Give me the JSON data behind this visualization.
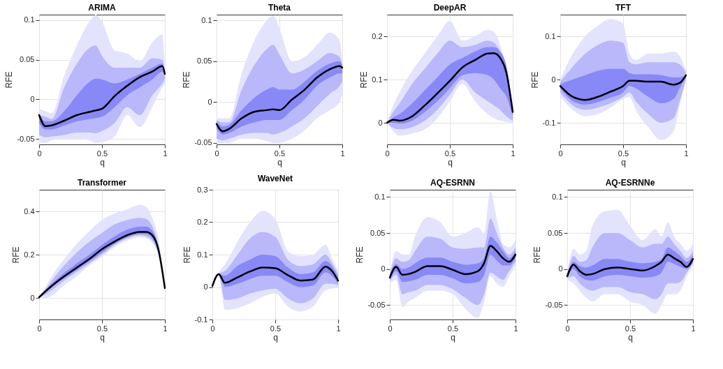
{
  "chart_data": [
    {
      "type": "line",
      "title": "ARIMA",
      "xlabel": "q",
      "ylabel": "RFE",
      "xlim": [
        0,
        1
      ],
      "xticks": [
        0,
        0.5,
        1
      ],
      "ylim": [
        -0.057,
        0.107
      ],
      "yticks": [
        -0.05,
        0,
        0.05,
        0.1
      ],
      "grid": true,
      "x": [
        0,
        0.05,
        0.1,
        0.2,
        0.3,
        0.4,
        0.45,
        0.5,
        0.6,
        0.7,
        0.8,
        0.9,
        0.98,
        1
      ],
      "series": [
        {
          "type": "area",
          "color": "#e3e3fd",
          "values": [
            null,
            null,
            null,
            null,
            null,
            null,
            null,
            null,
            null,
            null,
            null,
            null,
            null,
            null
          ],
          "lower": [
            -0.055,
            -0.055,
            -0.052,
            -0.05,
            -0.05,
            -0.052,
            -0.055,
            -0.054,
            -0.047,
            -0.02,
            -0.035,
            -0.01,
            0.015,
            0.02
          ],
          "upper": [
            -0.012,
            -0.015,
            -0.018,
            0.03,
            0.068,
            0.098,
            0.107,
            0.098,
            0.062,
            0.058,
            0.048,
            0.072,
            0.082,
            0.04
          ]
        },
        {
          "type": "area",
          "color": "#b8b8fb",
          "values": [
            null,
            null,
            null,
            null,
            null,
            null,
            null,
            null,
            null,
            null,
            null,
            null,
            null,
            null
          ],
          "lower": [
            -0.045,
            -0.048,
            -0.047,
            -0.045,
            -0.042,
            -0.042,
            -0.043,
            -0.04,
            -0.03,
            -0.01,
            -0.02,
            0.005,
            0.02,
            0.025
          ],
          "upper": [
            -0.02,
            -0.022,
            -0.025,
            0.015,
            0.045,
            0.065,
            0.068,
            0.055,
            0.04,
            0.04,
            0.04,
            0.052,
            0.05,
            0.035
          ]
        },
        {
          "type": "area",
          "color": "#8888f7",
          "values": [
            null,
            null,
            null,
            null,
            null,
            null,
            null,
            null,
            null,
            null,
            null,
            null,
            null,
            null
          ],
          "lower": [
            -0.03,
            -0.038,
            -0.038,
            -0.033,
            -0.028,
            -0.025,
            -0.024,
            -0.022,
            -0.01,
            0.005,
            0.015,
            0.025,
            0.035,
            0.03
          ],
          "upper": [
            -0.018,
            -0.028,
            -0.028,
            -0.015,
            0.005,
            0.022,
            0.026,
            0.025,
            0.02,
            0.025,
            0.032,
            0.04,
            0.045,
            0.035
          ]
        },
        {
          "type": "line",
          "color": "#000000",
          "values": [
            -0.02,
            -0.034,
            -0.033,
            -0.027,
            -0.02,
            -0.016,
            -0.014,
            -0.012,
            0.004,
            0.017,
            0.028,
            0.035,
            0.042,
            0.032
          ]
        }
      ]
    },
    {
      "type": "line",
      "title": "Theta",
      "xlabel": "q",
      "ylabel": "RFE",
      "xlim": [
        0,
        1
      ],
      "xticks": [
        0,
        0.5,
        1
      ],
      "ylim": [
        -0.052,
        0.107
      ],
      "yticks": [
        -0.05,
        0,
        0.05,
        0.1
      ],
      "grid": true,
      "x": [
        0,
        0.05,
        0.1,
        0.2,
        0.3,
        0.4,
        0.45,
        0.5,
        0.6,
        0.7,
        0.8,
        0.9,
        0.98,
        1
      ],
      "series": [
        {
          "type": "area",
          "color": "#e3e3fd",
          "values": [
            null,
            null,
            null,
            null,
            null,
            null,
            null,
            null,
            null,
            null,
            null,
            null,
            null,
            null
          ],
          "lower": [
            -0.05,
            -0.05,
            -0.05,
            -0.045,
            -0.045,
            -0.048,
            -0.05,
            -0.05,
            -0.045,
            -0.035,
            -0.02,
            -0.01,
            0.0,
            0.01
          ],
          "upper": [
            -0.02,
            -0.02,
            -0.02,
            0.035,
            0.075,
            0.1,
            0.106,
            0.09,
            0.05,
            0.055,
            0.07,
            0.085,
            0.075,
            0.05
          ]
        },
        {
          "type": "area",
          "color": "#b8b8fb",
          "values": [
            null,
            null,
            null,
            null,
            null,
            null,
            null,
            null,
            null,
            null,
            null,
            null,
            null,
            null
          ],
          "lower": [
            -0.045,
            -0.047,
            -0.045,
            -0.04,
            -0.038,
            -0.038,
            -0.04,
            -0.038,
            -0.03,
            -0.02,
            -0.005,
            0.01,
            0.02,
            0.025
          ],
          "upper": [
            -0.022,
            -0.025,
            -0.025,
            0.015,
            0.045,
            0.065,
            0.07,
            0.058,
            0.035,
            0.04,
            0.05,
            0.06,
            0.055,
            0.045
          ]
        },
        {
          "type": "area",
          "color": "#8888f7",
          "values": [
            null,
            null,
            null,
            null,
            null,
            null,
            null,
            null,
            null,
            null,
            null,
            null,
            null,
            null
          ],
          "lower": [
            -0.032,
            -0.04,
            -0.038,
            -0.03,
            -0.025,
            -0.022,
            -0.022,
            -0.022,
            -0.01,
            0.003,
            0.02,
            0.03,
            0.035,
            0.035
          ],
          "upper": [
            -0.024,
            -0.03,
            -0.028,
            -0.01,
            0.005,
            0.015,
            0.018,
            0.015,
            0.015,
            0.025,
            0.038,
            0.047,
            0.05,
            0.045
          ]
        },
        {
          "type": "line",
          "color": "#000000",
          "values": [
            -0.027,
            -0.036,
            -0.033,
            -0.02,
            -0.012,
            -0.01,
            -0.009,
            -0.01,
            0.003,
            0.015,
            0.03,
            0.04,
            0.044,
            0.042
          ]
        }
      ]
    },
    {
      "type": "line",
      "title": "DeepAR",
      "xlabel": "q",
      "ylabel": "RFE",
      "xlim": [
        0,
        1
      ],
      "xticks": [
        0,
        0.5,
        1
      ],
      "ylim": [
        -0.05,
        0.25
      ],
      "yticks": [
        0,
        0.1,
        0.2
      ],
      "grid": true,
      "x": [
        0,
        0.05,
        0.1,
        0.2,
        0.3,
        0.4,
        0.5,
        0.6,
        0.7,
        0.8,
        0.85,
        0.9,
        0.95,
        1
      ],
      "series": [
        {
          "type": "area",
          "color": "#e3e3fd",
          "values": [
            null,
            null,
            null,
            null,
            null,
            null,
            null,
            null,
            null,
            null,
            null,
            null,
            null,
            null
          ],
          "lower": [
            0,
            -0.02,
            -0.03,
            -0.025,
            -0.015,
            0.01,
            0.05,
            0.09,
            0.05,
            0.02,
            0.01,
            0.005,
            0.002,
            0.0
          ],
          "upper": [
            0,
            0.04,
            0.07,
            0.12,
            0.16,
            0.2,
            0.235,
            0.19,
            0.2,
            0.215,
            0.21,
            0.18,
            0.12,
            0.03
          ]
        },
        {
          "type": "area",
          "color": "#b8b8fb",
          "values": [
            null,
            null,
            null,
            null,
            null,
            null,
            null,
            null,
            null,
            null,
            null,
            null,
            null,
            null
          ],
          "lower": [
            0,
            -0.012,
            -0.015,
            -0.01,
            0.005,
            0.03,
            0.065,
            0.1,
            0.07,
            0.05,
            0.04,
            0.03,
            0.015,
            0.005
          ],
          "upper": [
            0,
            0.025,
            0.045,
            0.09,
            0.125,
            0.16,
            0.19,
            0.175,
            0.18,
            0.19,
            0.185,
            0.165,
            0.13,
            0.03
          ]
        },
        {
          "type": "area",
          "color": "#8888f7",
          "values": [
            null,
            null,
            null,
            null,
            null,
            null,
            null,
            null,
            null,
            null,
            null,
            null,
            null,
            null
          ],
          "lower": [
            0,
            0,
            -0.002,
            0.005,
            0.025,
            0.05,
            0.08,
            0.11,
            0.115,
            0.11,
            0.1,
            0.08,
            0.06,
            0.015
          ],
          "upper": [
            0,
            0.012,
            0.02,
            0.045,
            0.075,
            0.105,
            0.135,
            0.15,
            0.165,
            0.175,
            0.175,
            0.165,
            0.13,
            0.03
          ]
        },
        {
          "type": "line",
          "color": "#000000",
          "values": [
            0,
            0.007,
            0.005,
            0.015,
            0.04,
            0.068,
            0.097,
            0.128,
            0.145,
            0.16,
            0.161,
            0.15,
            0.115,
            0.025
          ]
        }
      ]
    },
    {
      "type": "line",
      "title": "TFT",
      "xlabel": "q",
      "ylabel": "RFE",
      "xlim": [
        0,
        1
      ],
      "xticks": [
        0,
        0.5,
        1
      ],
      "ylim": [
        -0.15,
        0.15
      ],
      "yticks": [
        -0.1,
        0,
        0.1
      ],
      "grid": true,
      "x": [
        0,
        0.1,
        0.2,
        0.3,
        0.4,
        0.5,
        0.55,
        0.6,
        0.7,
        0.8,
        0.9,
        0.95,
        1
      ],
      "series": [
        {
          "type": "area",
          "color": "#e3e3fd",
          "values": [
            null,
            null,
            null,
            null,
            null,
            null,
            null,
            null,
            null,
            null,
            null,
            null,
            null
          ],
          "lower": [
            -0.04,
            -0.07,
            -0.085,
            -0.08,
            -0.065,
            -0.045,
            -0.04,
            -0.07,
            -0.11,
            -0.14,
            -0.12,
            -0.06,
            0.0
          ],
          "upper": [
            0,
            0.06,
            0.1,
            0.125,
            0.14,
            0.13,
            0.06,
            0.045,
            0.06,
            0.06,
            0.065,
            0.055,
            0.02
          ]
        },
        {
          "type": "area",
          "color": "#b8b8fb",
          "values": [
            null,
            null,
            null,
            null,
            null,
            null,
            null,
            null,
            null,
            null,
            null,
            null,
            null
          ],
          "lower": [
            -0.03,
            -0.06,
            -0.07,
            -0.065,
            -0.055,
            -0.04,
            -0.03,
            -0.05,
            -0.08,
            -0.1,
            -0.09,
            -0.05,
            0.0
          ],
          "upper": [
            -0.005,
            0.03,
            0.06,
            0.08,
            0.09,
            0.085,
            0.04,
            0.035,
            0.04,
            0.04,
            0.04,
            0.035,
            0.015
          ]
        },
        {
          "type": "area",
          "color": "#8888f7",
          "values": [
            null,
            null,
            null,
            null,
            null,
            null,
            null,
            null,
            null,
            null,
            null,
            null,
            null
          ],
          "lower": [
            -0.02,
            -0.05,
            -0.058,
            -0.052,
            -0.042,
            -0.03,
            -0.015,
            -0.02,
            -0.04,
            -0.055,
            -0.045,
            -0.02,
            0.005
          ],
          "upper": [
            -0.01,
            0.0,
            0.01,
            0.02,
            0.025,
            0.025,
            0.015,
            0.012,
            0.012,
            0.01,
            0.005,
            0.005,
            0.01
          ]
        },
        {
          "type": "line",
          "color": "#000000",
          "values": [
            -0.015,
            -0.04,
            -0.047,
            -0.04,
            -0.028,
            -0.015,
            -0.003,
            -0.003,
            -0.005,
            -0.005,
            -0.012,
            -0.008,
            0.01
          ]
        }
      ]
    },
    {
      "type": "line",
      "title": "Transformer",
      "xlabel": "q",
      "ylabel": "RFE",
      "xlim": [
        0,
        1
      ],
      "xticks": [
        0,
        0.5,
        1
      ],
      "ylim": [
        -0.1,
        0.5
      ],
      "yticks": [
        0,
        0.2,
        0.4
      ],
      "grid": true,
      "x": [
        0,
        0.05,
        0.1,
        0.2,
        0.3,
        0.4,
        0.5,
        0.6,
        0.7,
        0.8,
        0.85,
        0.9,
        0.95,
        1
      ],
      "series": [
        {
          "type": "area",
          "color": "#e3e3fd",
          "values": [
            null,
            null,
            null,
            null,
            null,
            null,
            null,
            null,
            null,
            null,
            null,
            null,
            null,
            null
          ],
          "lower": [
            0,
            0,
            0.01,
            0.06,
            0.1,
            0.15,
            0.19,
            0.235,
            0.265,
            0.28,
            0.275,
            0.255,
            0.19,
            0.03
          ],
          "upper": [
            0.005,
            0.05,
            0.1,
            0.18,
            0.25,
            0.31,
            0.36,
            0.39,
            0.41,
            0.43,
            0.42,
            0.37,
            0.27,
            0.06
          ]
        },
        {
          "type": "area",
          "color": "#b8b8fb",
          "values": [
            null,
            null,
            null,
            null,
            null,
            null,
            null,
            null,
            null,
            null,
            null,
            null,
            null,
            null
          ],
          "lower": [
            0.001,
            0.015,
            0.035,
            0.08,
            0.12,
            0.16,
            0.2,
            0.245,
            0.275,
            0.29,
            0.285,
            0.265,
            0.2,
            0.04
          ],
          "upper": [
            0.004,
            0.04,
            0.08,
            0.15,
            0.21,
            0.26,
            0.3,
            0.34,
            0.36,
            0.37,
            0.365,
            0.33,
            0.24,
            0.05
          ]
        },
        {
          "type": "area",
          "color": "#8888f7",
          "values": [
            null,
            null,
            null,
            null,
            null,
            null,
            null,
            null,
            null,
            null,
            null,
            null,
            null,
            null
          ],
          "lower": [
            0.002,
            0.025,
            0.05,
            0.09,
            0.13,
            0.17,
            0.21,
            0.25,
            0.28,
            0.295,
            0.295,
            0.275,
            0.21,
            0.04
          ],
          "upper": [
            0.004,
            0.035,
            0.065,
            0.115,
            0.16,
            0.2,
            0.245,
            0.285,
            0.315,
            0.33,
            0.33,
            0.31,
            0.23,
            0.05
          ]
        },
        {
          "type": "line",
          "color": "#000000",
          "values": [
            0.003,
            0.03,
            0.055,
            0.1,
            0.14,
            0.18,
            0.225,
            0.26,
            0.29,
            0.305,
            0.305,
            0.29,
            0.22,
            0.045
          ]
        }
      ]
    },
    {
      "type": "line",
      "title": "WaveNet",
      "xlabel": "q",
      "ylabel": "RFE",
      "xlim": [
        0,
        1
      ],
      "xticks": [
        0,
        0.5,
        1
      ],
      "ylim": [
        -0.1,
        0.3
      ],
      "yticks": [
        -0.1,
        0,
        0.1,
        0.2,
        0.3
      ],
      "grid": true,
      "x": [
        0,
        0.05,
        0.1,
        0.2,
        0.3,
        0.4,
        0.5,
        0.6,
        0.7,
        0.8,
        0.9,
        0.95,
        1
      ],
      "series": [
        {
          "type": "area",
          "color": "#e3e3fd",
          "values": [
            null,
            null,
            null,
            null,
            null,
            null,
            null,
            null,
            null,
            null,
            null,
            null,
            null
          ],
          "lower": [
            0,
            0.035,
            -0.07,
            -0.065,
            -0.05,
            -0.03,
            -0.02,
            -0.06,
            -0.075,
            -0.06,
            -0.01,
            -0.005,
            0.0
          ],
          "upper": [
            0.005,
            0.045,
            0.07,
            0.14,
            0.2,
            0.235,
            0.21,
            0.11,
            0.095,
            0.1,
            0.13,
            0.09,
            0.05
          ]
        },
        {
          "type": "area",
          "color": "#b8b8fb",
          "values": [
            null,
            null,
            null,
            null,
            null,
            null,
            null,
            null,
            null,
            null,
            null,
            null,
            null
          ],
          "lower": [
            0.001,
            0.037,
            -0.04,
            -0.035,
            -0.02,
            -0.01,
            -0.005,
            -0.035,
            -0.05,
            -0.035,
            0.01,
            0.01,
            0.005
          ],
          "upper": [
            0.004,
            0.042,
            0.05,
            0.1,
            0.15,
            0.17,
            0.155,
            0.085,
            0.065,
            0.07,
            0.1,
            0.075,
            0.04
          ]
        },
        {
          "type": "area",
          "color": "#8888f7",
          "values": [
            null,
            null,
            null,
            null,
            null,
            null,
            null,
            null,
            null,
            null,
            null,
            null,
            null
          ],
          "lower": [
            0.002,
            0.039,
            0.0,
            0.01,
            0.025,
            0.035,
            0.035,
            0.015,
            0.0,
            0.005,
            0.045,
            0.035,
            0.01
          ],
          "upper": [
            0.004,
            0.041,
            0.035,
            0.065,
            0.085,
            0.1,
            0.095,
            0.06,
            0.04,
            0.045,
            0.08,
            0.065,
            0.03
          ]
        },
        {
          "type": "line",
          "color": "#000000",
          "values": [
            0.003,
            0.04,
            0.013,
            0.03,
            0.048,
            0.06,
            0.058,
            0.037,
            0.02,
            0.023,
            0.063,
            0.05,
            0.02
          ]
        }
      ]
    },
    {
      "type": "line",
      "title": "AQ-ESRNN",
      "xlabel": "q",
      "ylabel": "RFE",
      "xlim": [
        0,
        1
      ],
      "xticks": [
        0,
        0.5,
        1
      ],
      "ylim": [
        -0.07,
        0.11
      ],
      "yticks": [
        -0.05,
        0,
        0.05,
        0.1
      ],
      "grid": true,
      "x": [
        0,
        0.05,
        0.1,
        0.15,
        0.2,
        0.3,
        0.4,
        0.5,
        0.6,
        0.7,
        0.75,
        0.8,
        0.85,
        0.9,
        0.95,
        1
      ],
      "series": [
        {
          "type": "area",
          "color": "#e3e3fd",
          "values": [
            null,
            null,
            null,
            null,
            null,
            null,
            null,
            null,
            null,
            null,
            null,
            null,
            null,
            null,
            null,
            null
          ],
          "lower": [
            -0.02,
            -0.015,
            -0.053,
            -0.045,
            -0.04,
            -0.03,
            -0.03,
            -0.035,
            -0.055,
            -0.068,
            -0.045,
            -0.01,
            -0.02,
            -0.025,
            -0.01,
            0.005
          ],
          "upper": [
            -0.005,
            0.025,
            0.02,
            0.02,
            0.045,
            0.072,
            0.065,
            0.045,
            0.05,
            0.058,
            0.05,
            0.108,
            0.07,
            0.035,
            0.03,
            0.04
          ]
        },
        {
          "type": "area",
          "color": "#b8b8fb",
          "values": [
            null,
            null,
            null,
            null,
            null,
            null,
            null,
            null,
            null,
            null,
            null,
            null,
            null,
            null,
            null,
            null
          ],
          "lower": [
            -0.017,
            -0.008,
            -0.035,
            -0.032,
            -0.03,
            -0.022,
            -0.022,
            -0.028,
            -0.04,
            -0.05,
            -0.035,
            -0.005,
            -0.01,
            -0.015,
            -0.003,
            0.01
          ],
          "upper": [
            -0.007,
            0.015,
            0.01,
            0.012,
            0.025,
            0.045,
            0.042,
            0.03,
            0.028,
            0.03,
            0.03,
            0.07,
            0.05,
            0.03,
            0.02,
            0.03
          ]
        },
        {
          "type": "area",
          "color": "#8888f7",
          "values": [
            null,
            null,
            null,
            null,
            null,
            null,
            null,
            null,
            null,
            null,
            null,
            null,
            null,
            null,
            null,
            null
          ],
          "lower": [
            -0.015,
            -0.003,
            -0.018,
            -0.017,
            -0.015,
            -0.008,
            -0.008,
            -0.013,
            -0.02,
            -0.018,
            -0.008,
            0.02,
            0.012,
            0.005,
            0.005,
            0.015
          ],
          "upper": [
            -0.009,
            0.007,
            0.0,
            0.002,
            0.008,
            0.016,
            0.016,
            0.01,
            0.006,
            0.008,
            0.015,
            0.045,
            0.037,
            0.025,
            0.015,
            0.025
          ]
        },
        {
          "type": "line",
          "color": "#000000",
          "values": [
            -0.012,
            0.003,
            -0.008,
            -0.007,
            -0.004,
            0.004,
            0.004,
            -0.001,
            -0.007,
            -0.003,
            0.008,
            0.032,
            0.025,
            0.015,
            0.01,
            0.02
          ]
        }
      ]
    },
    {
      "type": "line",
      "title": "AQ-ESRNNe",
      "xlabel": "q",
      "ylabel": "RFE",
      "xlim": [
        0,
        1
      ],
      "xticks": [
        0,
        0.5,
        1
      ],
      "ylim": [
        -0.07,
        0.11
      ],
      "yticks": [
        -0.05,
        0,
        0.05,
        0.1
      ],
      "grid": true,
      "x": [
        0,
        0.05,
        0.1,
        0.15,
        0.2,
        0.3,
        0.4,
        0.5,
        0.6,
        0.7,
        0.75,
        0.8,
        0.85,
        0.9,
        0.95,
        1
      ],
      "series": [
        {
          "type": "area",
          "color": "#e3e3fd",
          "values": [
            null,
            null,
            null,
            null,
            null,
            null,
            null,
            null,
            null,
            null,
            null,
            null,
            null,
            null,
            null,
            null
          ],
          "lower": [
            -0.015,
            -0.02,
            -0.03,
            -0.04,
            -0.045,
            -0.035,
            -0.035,
            -0.045,
            -0.05,
            -0.062,
            -0.05,
            -0.035,
            -0.035,
            -0.03,
            -0.01,
            0.005
          ],
          "upper": [
            -0.005,
            0.028,
            0.02,
            0.025,
            0.06,
            0.08,
            0.082,
            0.06,
            0.04,
            0.055,
            0.045,
            0.065,
            0.045,
            0.035,
            0.025,
            0.035
          ]
        },
        {
          "type": "area",
          "color": "#b8b8fb",
          "values": [
            null,
            null,
            null,
            null,
            null,
            null,
            null,
            null,
            null,
            null,
            null,
            null,
            null,
            null,
            null,
            null
          ],
          "lower": [
            -0.013,
            -0.01,
            -0.02,
            -0.027,
            -0.03,
            -0.025,
            -0.025,
            -0.032,
            -0.035,
            -0.042,
            -0.035,
            -0.02,
            -0.02,
            -0.018,
            -0.005,
            0.008
          ],
          "upper": [
            -0.007,
            0.018,
            0.01,
            0.012,
            0.03,
            0.05,
            0.05,
            0.04,
            0.03,
            0.035,
            0.035,
            0.045,
            0.035,
            0.025,
            0.015,
            0.025
          ]
        },
        {
          "type": "area",
          "color": "#8888f7",
          "values": [
            null,
            null,
            null,
            null,
            null,
            null,
            null,
            null,
            null,
            null,
            null,
            null,
            null,
            null,
            null,
            null
          ],
          "lower": [
            -0.012,
            0.0,
            -0.01,
            -0.015,
            -0.016,
            -0.01,
            -0.008,
            -0.01,
            -0.012,
            -0.01,
            -0.005,
            0.01,
            0.007,
            0.003,
            0.0,
            0.01
          ],
          "upper": [
            -0.008,
            0.01,
            0.004,
            0.002,
            0.005,
            0.014,
            0.014,
            0.01,
            0.008,
            0.01,
            0.014,
            0.03,
            0.025,
            0.018,
            0.01,
            0.02
          ]
        },
        {
          "type": "line",
          "color": "#000000",
          "values": [
            -0.01,
            0.006,
            -0.003,
            -0.008,
            -0.007,
            0.0,
            0.002,
            0.0,
            -0.002,
            0.004,
            0.01,
            0.02,
            0.015,
            0.01,
            0.003,
            0.014
          ]
        }
      ]
    }
  ]
}
